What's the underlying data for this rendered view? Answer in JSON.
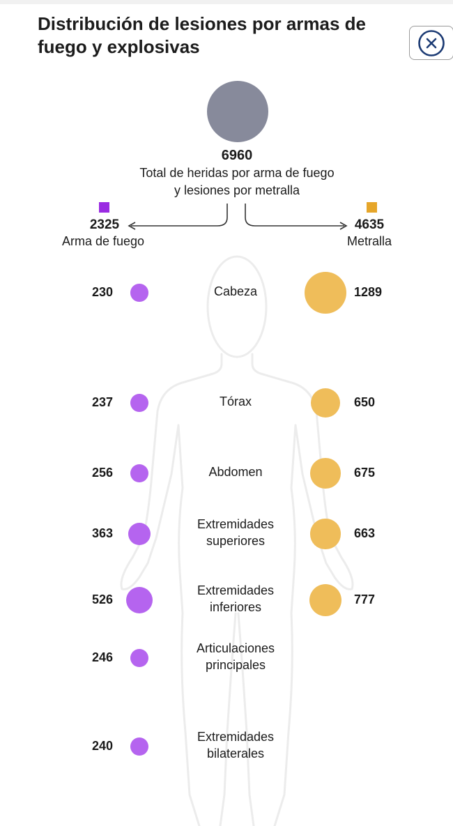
{
  "title": "Distribución de lesiones por armas de fuego y explosivas",
  "close_icon": "close-icon",
  "colors": {
    "firearm": "#b564ef",
    "firearm_legend": "#9a2be2",
    "shrapnel": "#efbd5a",
    "shrapnel_legend": "#e6a62a",
    "total": "#878a9b"
  },
  "chart_data": {
    "type": "bubble",
    "title": "Distribución de lesiones por armas de fuego y explosivas",
    "total": {
      "value": "6960",
      "label_line1": "Total de heridas por arma de fuego",
      "label_line2": "y lesiones por metralla"
    },
    "series": [
      {
        "name": "Arma de fuego",
        "total": "2325",
        "values": [
          230,
          237,
          256,
          363,
          526,
          246,
          240
        ]
      },
      {
        "name": "Metralla",
        "total": "4635",
        "values": [
          1289,
          650,
          675,
          663,
          777,
          null,
          null
        ]
      }
    ],
    "categories": [
      [
        "Cabeza"
      ],
      [
        "Tórax"
      ],
      [
        "Abdomen"
      ],
      [
        "Extremidades",
        "superiores"
      ],
      [
        "Extremidades",
        "inferiores"
      ],
      [
        "Articulaciones",
        "principales"
      ],
      [
        "Extremidades",
        "bilaterales"
      ]
    ]
  }
}
